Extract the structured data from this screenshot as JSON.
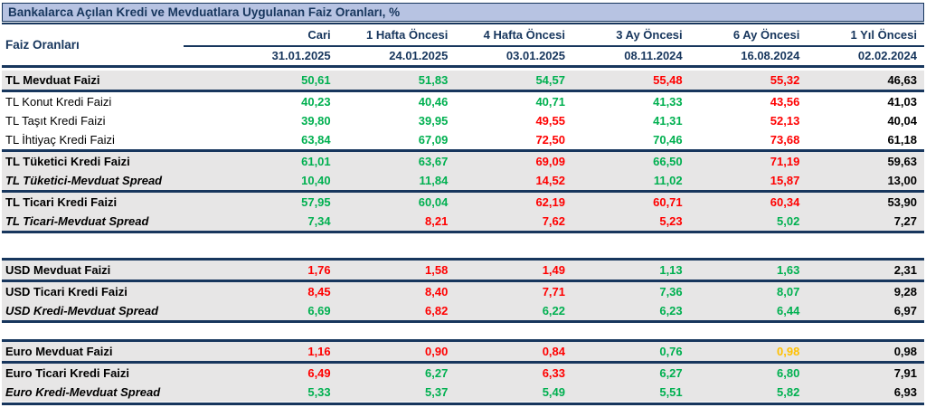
{
  "title": "Bankalarca Açılan Kredi ve Mevduatlara Uygulanan Faiz Oranları, %",
  "header": {
    "label_col": "Faiz Oranları",
    "columns": [
      {
        "label": "Cari",
        "date": "31.01.2025"
      },
      {
        "label": "1 Hafta Öncesi",
        "date": "24.01.2025"
      },
      {
        "label": "4 Hafta Öncesi",
        "date": "03.01.2025"
      },
      {
        "label": "3 Ay Öncesi",
        "date": "08.11.2024"
      },
      {
        "label": "6 Ay Öncesi",
        "date": "16.08.2024"
      },
      {
        "label": "1 Yıl Öncesi",
        "date": "02.02.2024"
      }
    ]
  },
  "colors": {
    "navy": "#17365D",
    "title_background": "#B7C3E2",
    "row_gray": "#E7E6E6",
    "increase_red": "#FF0000",
    "decrease_green": "#00B050",
    "unchanged_orange": "#FFC000"
  },
  "table": {
    "rows": [
      {
        "label": "TL Mevduat Faizi",
        "style": "bold",
        "bg": "gray",
        "values": [
          "50,61",
          "51,83",
          "54,57",
          "55,48",
          "55,32",
          "46,63"
        ],
        "colors": [
          "green",
          "green",
          "green",
          "red",
          "red",
          "black"
        ]
      },
      {
        "label": "TL Konut Kredi Faizi",
        "style": "normal",
        "bg": "white",
        "values": [
          "40,23",
          "40,46",
          "40,71",
          "41,33",
          "43,56",
          "41,03"
        ],
        "colors": [
          "green",
          "green",
          "green",
          "green",
          "red",
          "black"
        ]
      },
      {
        "label": "TL Taşıt Kredi Faizi",
        "style": "normal",
        "bg": "white",
        "values": [
          "39,80",
          "39,95",
          "49,55",
          "41,31",
          "52,13",
          "40,04"
        ],
        "colors": [
          "green",
          "green",
          "red",
          "green",
          "red",
          "black"
        ]
      },
      {
        "label": "TL İhtiyaç Kredi Faizi",
        "style": "normal",
        "bg": "white",
        "values": [
          "63,84",
          "67,09",
          "72,50",
          "70,46",
          "73,68",
          "61,18"
        ],
        "colors": [
          "green",
          "green",
          "red",
          "green",
          "red",
          "black"
        ]
      },
      {
        "label": "TL Tüketici Kredi Faizi",
        "style": "bold",
        "bg": "gray",
        "values": [
          "61,01",
          "63,67",
          "69,09",
          "66,50",
          "71,19",
          "59,63"
        ],
        "colors": [
          "green",
          "green",
          "red",
          "green",
          "red",
          "black"
        ]
      },
      {
        "label": "TL Tüketici-Mevduat Spread",
        "style": "bold-italic",
        "bg": "gray",
        "values": [
          "10,40",
          "11,84",
          "14,52",
          "11,02",
          "15,87",
          "13,00"
        ],
        "colors": [
          "green",
          "green",
          "red",
          "green",
          "red",
          "black"
        ]
      },
      {
        "label": "TL Ticari Kredi Faizi",
        "style": "bold",
        "bg": "gray",
        "values": [
          "57,95",
          "60,04",
          "62,19",
          "60,71",
          "60,34",
          "53,90"
        ],
        "colors": [
          "green",
          "green",
          "red",
          "red",
          "red",
          "black"
        ]
      },
      {
        "label": "TL Ticari-Mevduat Spread",
        "style": "bold-italic",
        "bg": "gray",
        "values": [
          "7,34",
          "8,21",
          "7,62",
          "5,23",
          "5,02",
          "7,27"
        ],
        "colors": [
          "green",
          "red",
          "red",
          "red",
          "green",
          "black"
        ]
      },
      {
        "label": "USD Mevduat Faizi",
        "style": "bold",
        "bg": "gray",
        "values": [
          "1,76",
          "1,58",
          "1,49",
          "1,13",
          "1,63",
          "2,31"
        ],
        "colors": [
          "red",
          "red",
          "red",
          "green",
          "green",
          "black"
        ]
      },
      {
        "label": "USD Ticari Kredi Faizi",
        "style": "bold",
        "bg": "gray",
        "values": [
          "8,45",
          "8,40",
          "7,71",
          "7,36",
          "8,07",
          "9,28"
        ],
        "colors": [
          "red",
          "red",
          "red",
          "green",
          "green",
          "black"
        ]
      },
      {
        "label": "USD Kredi-Mevduat Spread",
        "style": "bold-italic",
        "bg": "gray",
        "values": [
          "6,69",
          "6,82",
          "6,22",
          "6,23",
          "6,44",
          "6,97"
        ],
        "colors": [
          "green",
          "red",
          "green",
          "green",
          "green",
          "black"
        ]
      },
      {
        "label": "Euro Mevduat Faizi",
        "style": "bold",
        "bg": "gray",
        "values": [
          "1,16",
          "0,90",
          "0,84",
          "0,76",
          "0,98",
          "0,98"
        ],
        "colors": [
          "red",
          "red",
          "red",
          "green",
          "orange",
          "black"
        ]
      },
      {
        "label": "Euro Ticari Kredi Faizi",
        "style": "bold",
        "bg": "gray",
        "values": [
          "6,49",
          "6,27",
          "6,33",
          "6,27",
          "6,80",
          "7,91"
        ],
        "colors": [
          "red",
          "green",
          "red",
          "green",
          "green",
          "black"
        ]
      },
      {
        "label": "Euro Kredi-Mevduat Spread",
        "style": "bold-italic",
        "bg": "gray",
        "values": [
          "5,33",
          "5,37",
          "5,49",
          "5,51",
          "5,82",
          "6,93"
        ],
        "colors": [
          "green",
          "green",
          "green",
          "green",
          "green",
          "black"
        ]
      }
    ]
  },
  "chart_data": {
    "type": "table",
    "title": "Bankalarca Açılan Kredi ve Mevduatlara Uygulanan Faiz Oranları, %",
    "columns": [
      "Faiz Oranları",
      "Cari 31.01.2025",
      "1 Hafta Öncesi 24.01.2025",
      "4 Hafta Öncesi 03.01.2025",
      "3 Ay Öncesi 08.11.2024",
      "6 Ay Öncesi 16.08.2024",
      "1 Yıl Öncesi 02.02.2024"
    ],
    "rows": [
      [
        "TL Mevduat Faizi",
        50.61,
        51.83,
        54.57,
        55.48,
        55.32,
        46.63
      ],
      [
        "TL Konut Kredi Faizi",
        40.23,
        40.46,
        40.71,
        41.33,
        43.56,
        41.03
      ],
      [
        "TL Taşıt Kredi Faizi",
        39.8,
        39.95,
        49.55,
        41.31,
        52.13,
        40.04
      ],
      [
        "TL İhtiyaç Kredi Faizi",
        63.84,
        67.09,
        72.5,
        70.46,
        73.68,
        61.18
      ],
      [
        "TL Tüketici Kredi Faizi",
        61.01,
        63.67,
        69.09,
        66.5,
        71.19,
        59.63
      ],
      [
        "TL Tüketici-Mevduat Spread",
        10.4,
        11.84,
        14.52,
        11.02,
        15.87,
        13.0
      ],
      [
        "TL Ticari Kredi Faizi",
        57.95,
        60.04,
        62.19,
        60.71,
        60.34,
        53.9
      ],
      [
        "TL Ticari-Mevduat Spread",
        7.34,
        8.21,
        7.62,
        5.23,
        5.02,
        7.27
      ],
      [
        "USD Mevduat Faizi",
        1.76,
        1.58,
        1.49,
        1.13,
        1.63,
        2.31
      ],
      [
        "USD Ticari Kredi Faizi",
        8.45,
        8.4,
        7.71,
        7.36,
        8.07,
        9.28
      ],
      [
        "USD Kredi-Mevduat Spread",
        6.69,
        6.82,
        6.22,
        6.23,
        6.44,
        6.97
      ],
      [
        "Euro Mevduat Faizi",
        1.16,
        0.9,
        0.84,
        0.76,
        0.98,
        0.98
      ],
      [
        "Euro Ticari Kredi Faizi",
        6.49,
        6.27,
        6.33,
        6.27,
        6.8,
        7.91
      ],
      [
        "Euro Kredi-Mevduat Spread",
        5.33,
        5.37,
        5.49,
        5.51,
        5.82,
        6.93
      ]
    ],
    "value_color_legend": {
      "green": "lower than next older period",
      "red": "higher than next older period",
      "orange": "unchanged",
      "black": "oldest column (no comparison)"
    }
  }
}
